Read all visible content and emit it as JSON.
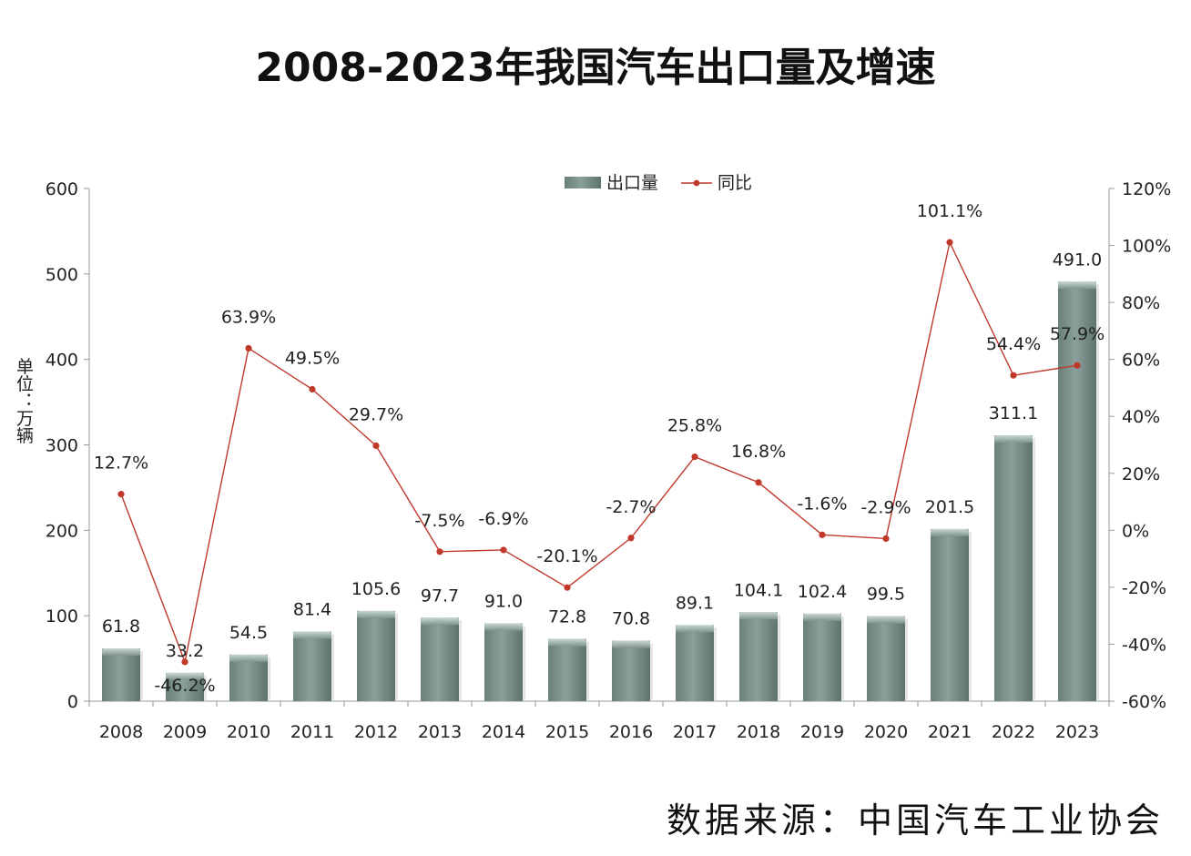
{
  "title": "2008-2023年我国汽车出口量及增速",
  "source": "数据来源：中国汽车工业协会",
  "colors": {
    "bar": "#7c918b",
    "line": "#c0392b",
    "axis": "#999999"
  },
  "chart_data": {
    "type": "bar",
    "categories": [
      "2008",
      "2009",
      "2010",
      "2011",
      "2012",
      "2013",
      "2014",
      "2015",
      "2016",
      "2017",
      "2018",
      "2019",
      "2020",
      "2021",
      "2022",
      "2023"
    ],
    "series": [
      {
        "name": "出口量",
        "type": "bar",
        "axis": "left",
        "values": [
          61.8,
          33.2,
          54.5,
          81.4,
          105.6,
          97.7,
          91.0,
          72.8,
          70.8,
          89.1,
          104.1,
          102.4,
          99.5,
          201.5,
          311.1,
          491.0
        ],
        "labels": [
          "61.8",
          "33.2",
          "54.5",
          "81.4",
          "105.6",
          "97.7",
          "91.0",
          "72.8",
          "70.8",
          "89.1",
          "104.1",
          "102.4",
          "99.5",
          "201.5",
          "311.1",
          "491.0"
        ]
      },
      {
        "name": "同比",
        "type": "line",
        "axis": "right",
        "values": [
          12.7,
          -46.2,
          63.9,
          49.5,
          29.7,
          -7.5,
          -6.9,
          -20.1,
          -2.7,
          25.8,
          16.8,
          -1.6,
          -2.9,
          101.1,
          54.4,
          57.9
        ],
        "labels": [
          "12.7%",
          "-46.2%",
          "63.9%",
          "49.5%",
          "29.7%",
          "-7.5%",
          "-6.9%",
          "-20.1%",
          "-2.7%",
          "25.8%",
          "16.8%",
          "-1.6%",
          "-2.9%",
          "101.1%",
          "54.4%",
          "57.9%"
        ]
      }
    ],
    "ylabel": "单位：万辆",
    "ylim": [
      0,
      600
    ],
    "yticks": [
      "0",
      "100",
      "200",
      "300",
      "400",
      "500",
      "600"
    ],
    "y2lim": [
      -60,
      120
    ],
    "y2ticks": [
      "-60%",
      "-40%",
      "-20%",
      "0%",
      "20%",
      "40%",
      "60%",
      "80%",
      "100%",
      "120%"
    ],
    "legend": "top-center",
    "grid": false
  }
}
